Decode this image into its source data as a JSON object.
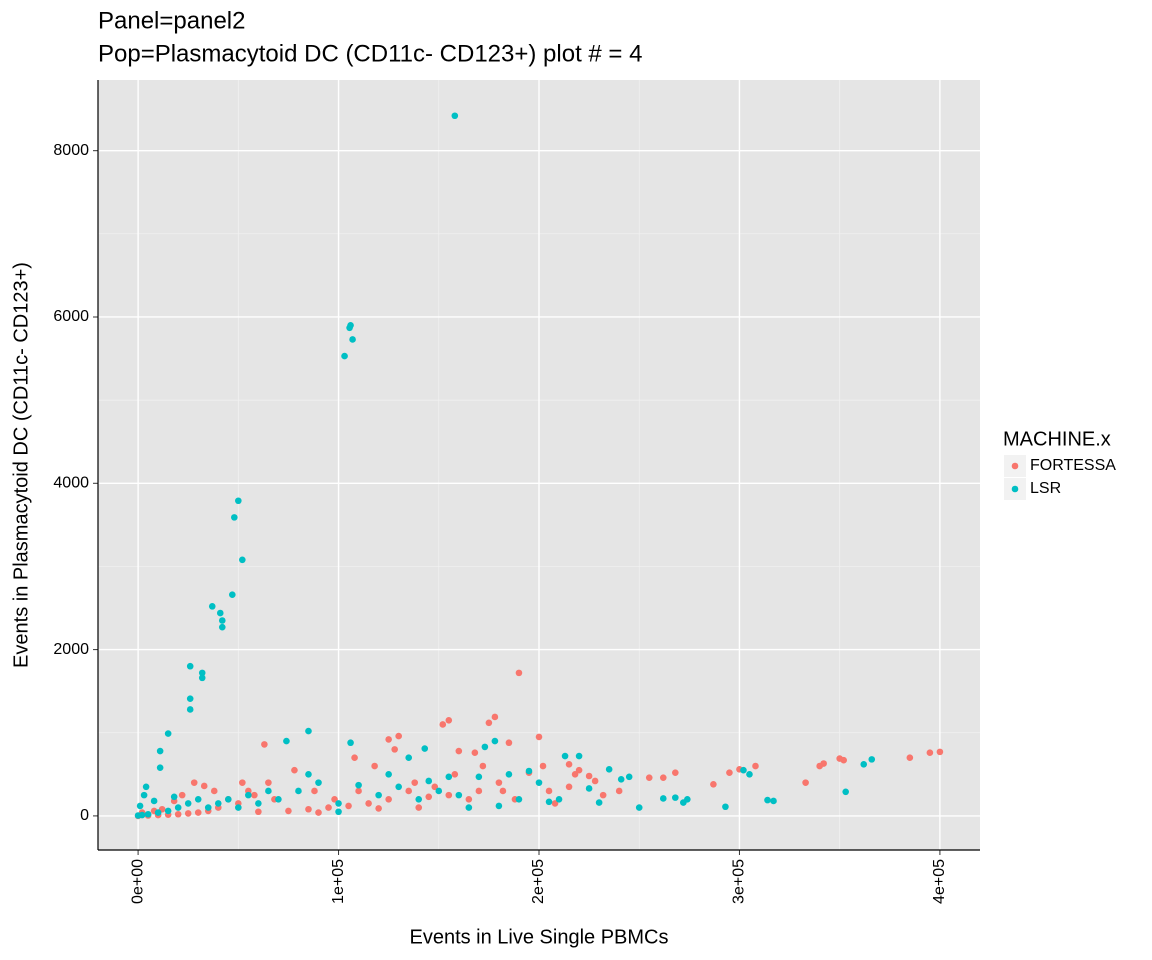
{
  "chart_data": {
    "type": "scatter",
    "title": "Panel=panel2",
    "subtitle": "Pop=Plasmacytoid DC (CD11c- CD123+) plot # = 4",
    "x_label": "Events in Live Single PBMCs",
    "y_label": "Events in Plasmacytoid DC (CD11c- CD123+)",
    "legend_title": "MACHINE.x",
    "legend": "right",
    "grid": true,
    "xlim": [
      -20000,
      420000
    ],
    "ylim": [
      -410,
      8850
    ],
    "xticks": [
      {
        "value": 0,
        "label": "0e+00"
      },
      {
        "value": 100000,
        "label": "1e+05"
      },
      {
        "value": 200000,
        "label": "2e+05"
      },
      {
        "value": 300000,
        "label": "3e+05"
      },
      {
        "value": 400000,
        "label": "4e+05"
      }
    ],
    "yticks": [
      0,
      2000,
      4000,
      6000,
      8000
    ],
    "series": [
      {
        "name": "FORTESSA",
        "color": "#F8766D",
        "x": [
          190000,
          155000,
          152000,
          178000,
          175000,
          130000,
          125000,
          160000,
          168000,
          185000,
          200000,
          202000,
          215000,
          218000,
          225000,
          228000,
          262000,
          268000,
          287000,
          295000,
          300000,
          308000,
          333000,
          340000,
          342000,
          350000,
          352000,
          385000,
          395000,
          400000,
          255000,
          240000,
          215000,
          205000,
          195000,
          180000,
          170000,
          165000,
          155000,
          145000,
          135000,
          125000,
          115000,
          105000,
          95000,
          85000,
          75000,
          65000,
          63000,
          55000,
          50000,
          45000,
          40000,
          35000,
          30000,
          25000,
          20000,
          15000,
          10000,
          5000,
          0,
          2000,
          8000,
          12000,
          18000,
          22000,
          28000,
          33000,
          38000,
          52000,
          58000,
          68000,
          78000,
          88000,
          98000,
          108000,
          118000,
          128000,
          138000,
          148000,
          158000,
          172000,
          182000,
          188000,
          208000,
          220000,
          232000,
          60000,
          90000,
          110000,
          120000,
          140000
        ],
        "y": [
          1720,
          1150,
          1100,
          1190,
          1120,
          960,
          920,
          780,
          760,
          880,
          950,
          600,
          620,
          500,
          480,
          420,
          460,
          520,
          380,
          520,
          560,
          600,
          400,
          600,
          630,
          690,
          670,
          700,
          760,
          770,
          460,
          300,
          350,
          300,
          520,
          400,
          300,
          200,
          250,
          230,
          300,
          200,
          150,
          120,
          100,
          80,
          60,
          400,
          860,
          300,
          150,
          200,
          100,
          60,
          40,
          30,
          20,
          15,
          10,
          5,
          0,
          40,
          60,
          80,
          180,
          250,
          400,
          360,
          300,
          400,
          250,
          200,
          550,
          300,
          200,
          700,
          600,
          800,
          400,
          350,
          500,
          600,
          300,
          200,
          150,
          550,
          250,
          50,
          40,
          300,
          90,
          100
        ]
      },
      {
        "name": "LSR",
        "color": "#00BFC4",
        "x": [
          158000,
          103000,
          106000,
          105500,
          107000,
          50000,
          52000,
          48000,
          47000,
          37000,
          41000,
          42000,
          42000,
          26000,
          32000,
          32000,
          26000,
          26000,
          15000,
          11000,
          11000,
          85000,
          74000,
          106000,
          143000,
          173000,
          178000,
          213000,
          220000,
          235000,
          241000,
          262000,
          268000,
          272000,
          274000,
          293000,
          302000,
          305000,
          314000,
          317000,
          353000,
          362000,
          366000,
          200000,
          210000,
          190000,
          160000,
          150000,
          130000,
          120000,
          100000,
          90000,
          80000,
          70000,
          60000,
          55000,
          45000,
          40000,
          35000,
          30000,
          25000,
          20000,
          15000,
          10000,
          5000,
          2000,
          0,
          1000,
          3000,
          4000,
          8000,
          18000,
          145000,
          155000,
          170000,
          185000,
          195000,
          245000,
          225000,
          230000,
          250000,
          205000,
          110000,
          125000,
          135000,
          140000,
          165000,
          180000,
          100000,
          85000,
          65000,
          50000
        ],
        "y": [
          8420,
          5530,
          5900,
          5870,
          5730,
          3790,
          3080,
          3590,
          2660,
          2520,
          2440,
          2350,
          2270,
          1800,
          1720,
          1660,
          1410,
          1280,
          990,
          780,
          580,
          1020,
          900,
          880,
          810,
          830,
          900,
          720,
          720,
          560,
          440,
          210,
          220,
          160,
          200,
          110,
          550,
          500,
          190,
          180,
          290,
          620,
          680,
          400,
          200,
          200,
          250,
          300,
          350,
          250,
          150,
          400,
          300,
          200,
          150,
          250,
          200,
          150,
          100,
          200,
          150,
          100,
          60,
          40,
          20,
          10,
          5,
          120,
          250,
          350,
          180,
          230,
          420,
          470,
          470,
          500,
          540,
          470,
          330,
          160,
          100,
          170,
          370,
          500,
          700,
          200,
          100,
          120,
          50,
          500,
          300,
          100
        ]
      }
    ]
  }
}
